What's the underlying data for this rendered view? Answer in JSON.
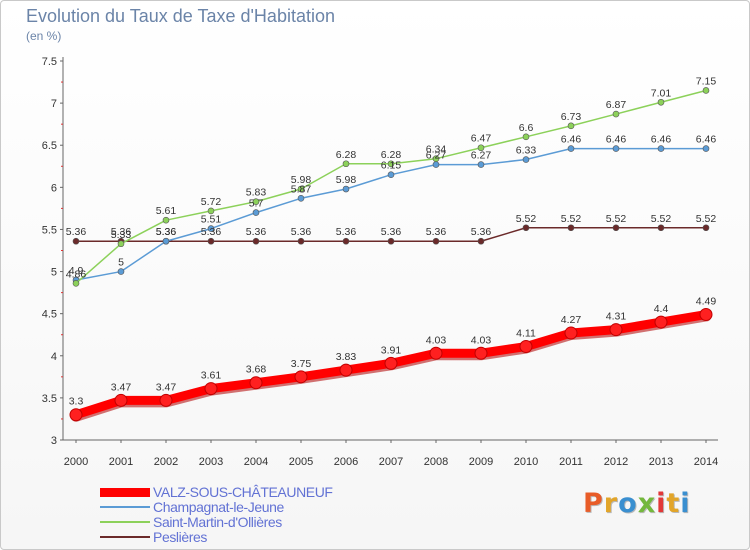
{
  "header": {
    "title": "Evolution du Taux de Taxe d'Habitation",
    "unit": "(en %)"
  },
  "logo": {
    "text": "Proxiti",
    "colors": [
      "#e85c28",
      "#e2a529",
      "#3a8fd0",
      "#74b83c",
      "#e23838",
      "#e2a529",
      "#3a8fd0"
    ]
  },
  "chart_data": {
    "type": "line",
    "x": [
      "2000",
      "2001",
      "2002",
      "2003",
      "2004",
      "2005",
      "2006",
      "2007",
      "2008",
      "2009",
      "2010",
      "2011",
      "2012",
      "2013",
      "2014"
    ],
    "ylim": [
      3,
      7.5
    ],
    "yticks": [
      "3",
      "3.5",
      "4",
      "4.5",
      "5",
      "5.5",
      "6",
      "6.5",
      "7",
      "7.5"
    ],
    "grid": false,
    "legend_position": "bottom-left",
    "series": [
      {
        "name": "Peslières",
        "color": "#6b2a2a",
        "values": [
          5.36,
          5.36,
          5.36,
          5.36,
          5.36,
          5.36,
          5.36,
          5.36,
          5.36,
          5.36,
          5.52,
          5.52,
          5.52,
          5.52,
          5.52
        ],
        "labels": [
          "5.36",
          "5.36",
          "5.36",
          "5.36",
          "5.36",
          "5.36",
          "5.36",
          "5.36",
          "5.36",
          "5.36",
          "5.52",
          "5.52",
          "5.52",
          "5.52",
          "5.52"
        ]
      },
      {
        "name": "Champagnat-le-Jeune",
        "color": "#5b9bd5",
        "values": [
          4.9,
          5,
          5.36,
          5.51,
          5.7,
          5.87,
          5.98,
          6.15,
          6.27,
          6.27,
          6.33,
          6.46,
          6.46,
          6.46,
          6.46
        ],
        "labels": [
          "4.9",
          "5",
          "5.36",
          "5.51",
          "5.7",
          "5.87",
          "5.98",
          "6.15",
          "6.27",
          "6.27",
          "6.33",
          "6.46",
          "6.46",
          "6.46",
          "6.46"
        ]
      },
      {
        "name": "Saint-Martin-d'Ollières",
        "color": "#8cd15a",
        "values": [
          4.86,
          5.33,
          5.61,
          5.72,
          5.83,
          5.98,
          6.28,
          6.28,
          6.34,
          6.47,
          6.6,
          6.73,
          6.87,
          7.01,
          7.15
        ],
        "labels": [
          "4.86",
          "5.33",
          "5.61",
          "5.72",
          "5.83",
          "5.98",
          "6.28",
          "6.28",
          "6.34",
          "6.47",
          "6.6",
          "6.73",
          "6.87",
          "7.01",
          "7.15"
        ]
      },
      {
        "name": "VALZ-SOUS-CHÂTEAUNEUF",
        "color": "#ff0000",
        "values": [
          3.3,
          3.47,
          3.47,
          3.61,
          3.68,
          3.75,
          3.83,
          3.91,
          4.03,
          4.03,
          4.11,
          4.27,
          4.31,
          4.4,
          4.49
        ],
        "labels": [
          "3.3",
          "3.47",
          "3.47",
          "3.61",
          "3.68",
          "3.75",
          "3.83",
          "3.91",
          "4.03",
          "4.03",
          "4.11",
          "4.27",
          "4.31",
          "4.4",
          "4.49"
        ],
        "bold": true
      }
    ]
  },
  "legend": [
    {
      "label": "VALZ-SOUS-CHÂTEAUNEUF",
      "color": "#ff0000"
    },
    {
      "label": "Champagnat-le-Jeune",
      "color": "#5b9bd5"
    },
    {
      "label": "Saint-Martin-d'Ollières",
      "color": "#8cd15a"
    },
    {
      "label": "Peslières",
      "color": "#6b2a2a"
    }
  ]
}
